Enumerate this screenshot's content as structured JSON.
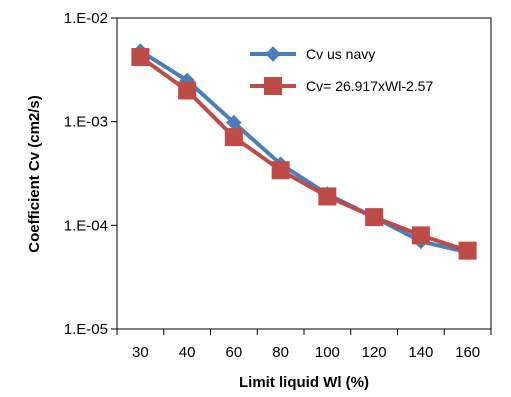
{
  "chart_data": {
    "type": "line",
    "xlabel": "Limit liquid Wl (%)",
    "ylabel": "Coefficient Cv (cm2/s)",
    "categories": [
      "30",
      "40",
      "60",
      "80",
      "100",
      "120",
      "140",
      "160"
    ],
    "y_scale": "log",
    "ylim": [
      1e-05,
      0.01
    ],
    "y_ticks": [
      {
        "value": 0.01,
        "label": "1.E-02"
      },
      {
        "value": 0.001,
        "label": "1.E-03"
      },
      {
        "value": 0.0001,
        "label": "1.E-04"
      },
      {
        "value": 1e-05,
        "label": "1.E-05"
      }
    ],
    "grid": false,
    "legend_position": "top-right",
    "series": [
      {
        "name": "Cv us navy",
        "color": "#4a7ebb",
        "marker": "diamond",
        "values": [
          0.0048,
          0.0025,
          0.00098,
          0.00039,
          0.0002,
          0.00012,
          7e-05,
          5.5e-05
        ]
      },
      {
        "name": "Cv= 26.917xWl-2.57",
        "color": "#be4b48",
        "marker": "square",
        "values": [
          0.0042,
          0.002,
          0.00071,
          0.00034,
          0.00019,
          0.00012,
          8e-05,
          5.7e-05
        ]
      }
    ]
  }
}
